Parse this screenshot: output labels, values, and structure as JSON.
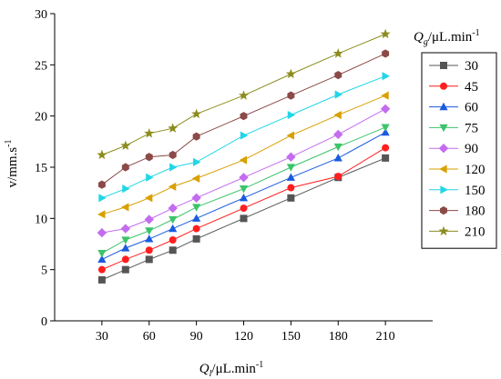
{
  "chart_data": {
    "type": "line",
    "xlabel_italic": "Q",
    "xlabel_sub": "l",
    "xlabel_rest": "/μL.min",
    "xlabel_sup": "-1",
    "ylabel": "v/mm.s",
    "ylabel_sup": "-1",
    "legend_title_italic": "Q",
    "legend_title_sub": "g",
    "legend_title_rest": "/μL.min",
    "legend_title_sup": "-1",
    "xlim": [
      0,
      240
    ],
    "ylim": [
      0,
      30
    ],
    "x_ticks": [
      30,
      60,
      90,
      120,
      150,
      180,
      210
    ],
    "y_ticks": [
      0,
      5,
      10,
      15,
      20,
      25,
      30
    ],
    "x": [
      30,
      45,
      60,
      75,
      90,
      120,
      150,
      180,
      210
    ],
    "grid": false,
    "legend_position": "right",
    "series": [
      {
        "name": "30",
        "color": "#555555",
        "marker": "square",
        "values": [
          4.0,
          5.0,
          6.0,
          6.9,
          8.0,
          10.0,
          12.0,
          14.0,
          15.9
        ]
      },
      {
        "name": "45",
        "color": "#ff1e1e",
        "marker": "circle",
        "values": [
          5.0,
          6.0,
          6.9,
          7.9,
          9.0,
          11.0,
          13.0,
          14.1,
          16.9
        ]
      },
      {
        "name": "60",
        "color": "#1a5ae0",
        "marker": "triangle-up",
        "values": [
          6.0,
          7.1,
          8.0,
          9.0,
          10.0,
          12.0,
          14.0,
          15.9,
          18.4
        ]
      },
      {
        "name": "75",
        "color": "#3cc46a",
        "marker": "triangle-down",
        "values": [
          6.6,
          7.9,
          8.8,
          9.9,
          11.1,
          12.9,
          15.0,
          17.0,
          18.9
        ]
      },
      {
        "name": "90",
        "color": "#c46cf0",
        "marker": "diamond",
        "values": [
          8.6,
          9.0,
          9.9,
          11.0,
          12.0,
          14.0,
          16.0,
          18.2,
          20.7
        ]
      },
      {
        "name": "120",
        "color": "#d9a000",
        "marker": "triangle-left",
        "values": [
          10.4,
          11.1,
          12.0,
          13.1,
          13.9,
          15.7,
          18.1,
          20.1,
          22.0
        ]
      },
      {
        "name": "150",
        "color": "#21d6e6",
        "marker": "triangle-right",
        "values": [
          12.0,
          12.9,
          14.0,
          15.0,
          15.5,
          18.1,
          20.1,
          22.1,
          23.9
        ]
      },
      {
        "name": "180",
        "color": "#8b4a48",
        "marker": "hexagon",
        "values": [
          13.3,
          15.0,
          16.0,
          16.2,
          18.0,
          20.0,
          22.0,
          24.0,
          26.1
        ]
      },
      {
        "name": "210",
        "color": "#8c8c1e",
        "marker": "star",
        "values": [
          16.2,
          17.1,
          18.3,
          18.8,
          20.2,
          22.0,
          24.1,
          26.1,
          28.0
        ]
      }
    ]
  }
}
